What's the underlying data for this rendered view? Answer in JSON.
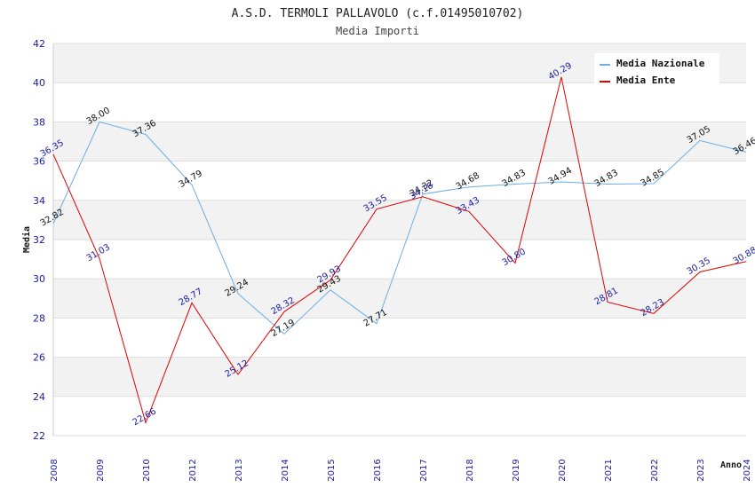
{
  "chart_data": {
    "type": "line",
    "title": "A.S.D. TERMOLI PALLAVOLO (c.f.01495010702)",
    "subtitle": "Media Importi",
    "xlabel": "Anno",
    "ylabel": "Media",
    "ylim": [
      22,
      42
    ],
    "yticks": [
      22,
      24,
      26,
      28,
      30,
      32,
      34,
      36,
      38,
      40,
      42
    ],
    "categories": [
      "2008",
      "2009",
      "2010",
      "2012",
      "2013",
      "2014",
      "2015",
      "2016",
      "2017",
      "2018",
      "2019",
      "2020",
      "2021",
      "2022",
      "2023",
      "2024"
    ],
    "series": [
      {
        "name": "Media Nazionale",
        "color": "#6aaee6",
        "label_color": "#111111",
        "values": [
          32.82,
          38.0,
          37.36,
          34.79,
          29.24,
          27.19,
          29.43,
          27.71,
          34.32,
          34.68,
          34.83,
          34.94,
          34.83,
          34.85,
          37.05,
          36.46
        ],
        "labels": [
          "32.82",
          "38.00",
          "37.36",
          "34.79",
          "29.24",
          "27.19",
          "29.43",
          "27.71",
          "34.32",
          "34.68",
          "34.83",
          "34.94",
          "34.83",
          "34.85",
          "37.05",
          "36.46"
        ]
      },
      {
        "name": "Media Ente",
        "color": "#e00000",
        "label_color": "#1a1aa6",
        "values": [
          36.35,
          31.03,
          22.66,
          28.77,
          25.12,
          28.32,
          29.93,
          33.55,
          34.18,
          33.43,
          30.8,
          40.29,
          28.81,
          28.23,
          30.35,
          30.88
        ],
        "labels": [
          "36.35",
          "31.03",
          "22.66",
          "28.77",
          "25.12",
          "28.32",
          "29.93",
          "33.55",
          "34.18",
          "33.43",
          "30.80",
          "40.29",
          "28.81",
          "28.23",
          "30.35",
          "30.88"
        ]
      }
    ],
    "legend_position": "top-right",
    "grid": true
  }
}
